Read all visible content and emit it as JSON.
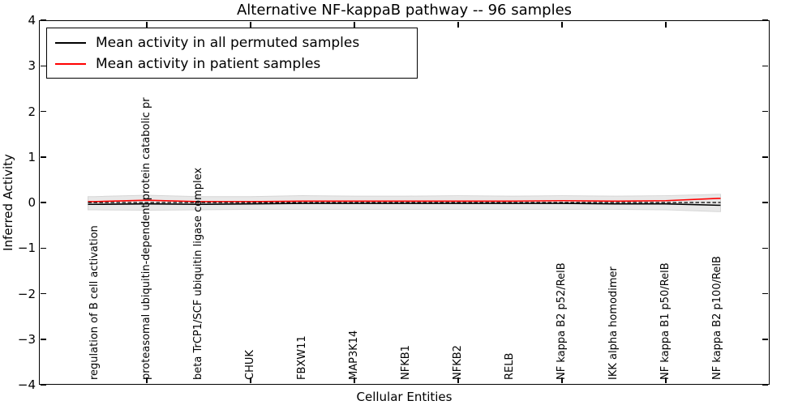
{
  "page": {
    "background": "#ffffff"
  },
  "title": "Alternative NF-kappaB pathway -- 96 samples",
  "axes": {
    "xlabel": "Cellular Entities",
    "ylabel": "Inferred Activity",
    "ytick_labels": [
      "4",
      "3",
      "2",
      "1",
      "0",
      "−1",
      "−2",
      "−3",
      "−4"
    ]
  },
  "legend": {
    "items": [
      {
        "label": "Mean activity in all permuted samples",
        "color": "#000000"
      },
      {
        "label": "Mean activity in patient samples",
        "color": "#ff0000"
      }
    ]
  },
  "chart_data": {
    "type": "line",
    "title": "Alternative NF-kappaB pathway -- 96 samples",
    "xlabel": "Cellular Entities",
    "ylabel": "Inferred Activity",
    "ylim": [
      -4,
      4
    ],
    "yticks": [
      4,
      3,
      2,
      1,
      0,
      -1,
      -2,
      -3,
      -4
    ],
    "grid": false,
    "legend_position": "upper left",
    "categories": [
      "regulation of B cell activation",
      "proteasomal ubiquitin-dependent protein catabolic pr",
      "beta TrCP1/SCF ubiquitin ligase complex",
      "CHUK",
      "FBXW11",
      "MAP3K14",
      "NFKB1",
      "NFKB2",
      "RELB",
      "NF kappa B2 p52/RelB",
      "IKK alpha homodimer",
      "NF kappa B1 p50/RelB",
      "NF kappa B2 p100/RelB"
    ],
    "series": [
      {
        "name": "Mean activity in all permuted samples",
        "color": "#000000",
        "line_style": "solid",
        "values": [
          -0.04,
          -0.03,
          -0.04,
          -0.03,
          -0.02,
          -0.02,
          -0.02,
          -0.02,
          -0.02,
          -0.02,
          -0.03,
          -0.03,
          -0.06
        ]
      },
      {
        "name": "Mean activity in patient samples",
        "color": "#ff0000",
        "line_style": "solid",
        "values": [
          0.02,
          0.05,
          0.02,
          0.02,
          0.03,
          0.03,
          0.03,
          0.03,
          0.03,
          0.04,
          0.03,
          0.04,
          0.09
        ]
      },
      {
        "name": "zero reference",
        "color": "#000000",
        "line_style": "dashed",
        "values": [
          0,
          0,
          0,
          0,
          0,
          0,
          0,
          0,
          0,
          0,
          0,
          0,
          0
        ]
      }
    ],
    "band": {
      "name": "permuted samples activity spread",
      "color": "#e8e8e8",
      "edge_color": "#d6d6d6",
      "upper": [
        0.13,
        0.16,
        0.13,
        0.13,
        0.15,
        0.14,
        0.14,
        0.15,
        0.14,
        0.15,
        0.14,
        0.15,
        0.18
      ],
      "lower": [
        -0.16,
        -0.17,
        -0.16,
        -0.15,
        -0.15,
        -0.15,
        -0.15,
        -0.15,
        -0.15,
        -0.15,
        -0.15,
        -0.16,
        -0.2
      ]
    },
    "sparse_xtick_indices": [
      1,
      3,
      5,
      7,
      9,
      11
    ]
  }
}
